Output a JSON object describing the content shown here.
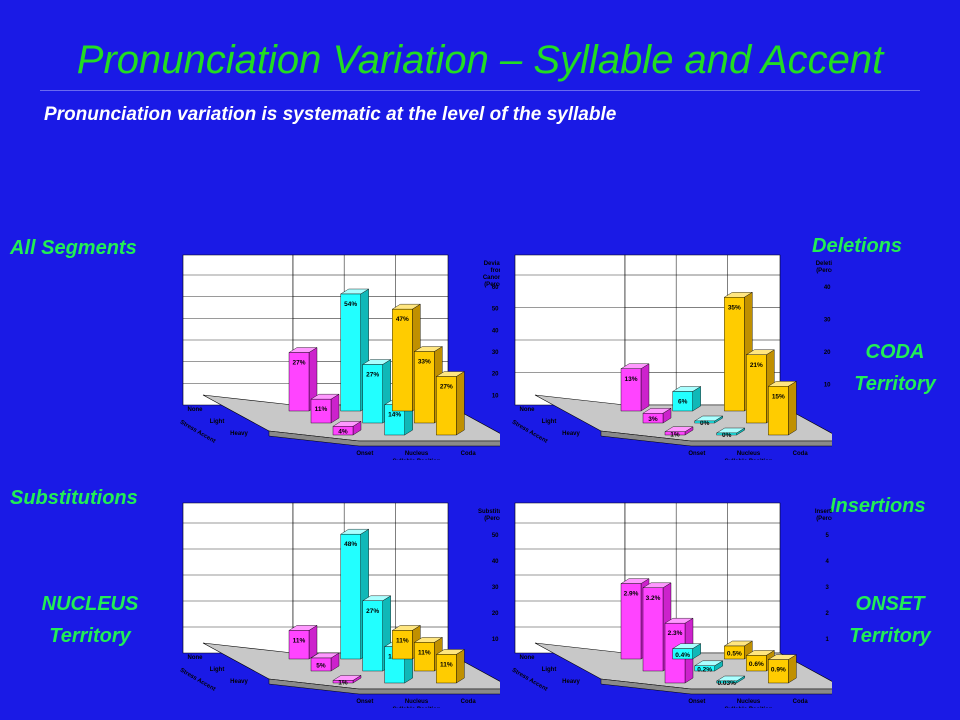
{
  "slide": {
    "title": "Pronunciation Variation – Syllable and Accent",
    "subtitle": "Pronunciation variation is systematic at the level of the syllable"
  },
  "labels": {
    "all_segments": "All Segments",
    "deletions": "Deletions",
    "coda_territory": [
      "CODA",
      "Territory"
    ],
    "substitutions": "Substitutions",
    "insertions": "Insertions",
    "nucleus_territory": [
      "NUCLEUS",
      "Territory"
    ],
    "onset_territory": [
      "ONSET",
      "Territory"
    ]
  },
  "colors": {
    "background": "#1a1ae6",
    "accent_text": "#22ee55",
    "onset": "#ff44ff",
    "nucleus": "#22ffff",
    "coda": "#ffcc00"
  },
  "chart_data": [
    {
      "type": "bar",
      "id": "all_segments",
      "title": "",
      "xlabel": "Syllable Position",
      "ylabel": "Deviation from Canonical (Percent)",
      "zlabel": "Stress Accent",
      "categories": [
        "Onset",
        "Nucleus",
        "Coda"
      ],
      "depth_categories": [
        "None",
        "Light",
        "Heavy"
      ],
      "yticks": [
        10,
        20,
        30,
        40,
        50,
        60
      ],
      "ylim": [
        0,
        60
      ],
      "series": [
        {
          "name": "Onset",
          "values": [
            27,
            11,
            4
          ],
          "labels": [
            "27%",
            "11%",
            "4%"
          ]
        },
        {
          "name": "Nucleus",
          "values": [
            54,
            27,
            14
          ],
          "labels": [
            "54%",
            "27%",
            "14%"
          ]
        },
        {
          "name": "Coda",
          "values": [
            47,
            33,
            27
          ],
          "labels": [
            "47%",
            "33%",
            "27%"
          ]
        }
      ]
    },
    {
      "type": "bar",
      "id": "deletions",
      "title": "",
      "xlabel": "Syllable Position",
      "ylabel": "Deletions (Percent)",
      "zlabel": "Stress Accent",
      "categories": [
        "Onset",
        "Nucleus",
        "Coda"
      ],
      "depth_categories": [
        "None",
        "Light",
        "Heavy"
      ],
      "yticks": [
        10,
        20,
        30,
        40
      ],
      "ylim": [
        0,
        40
      ],
      "series": [
        {
          "name": "Onset",
          "values": [
            13,
            3,
            1
          ],
          "labels": [
            "13%",
            "3%",
            "1%"
          ]
        },
        {
          "name": "Nucleus",
          "values": [
            6,
            0,
            0
          ],
          "labels": [
            "6%",
            "0%",
            "0%"
          ]
        },
        {
          "name": "Coda",
          "values": [
            35,
            21,
            15
          ],
          "labels": [
            "35%",
            "21%",
            "15%"
          ]
        }
      ]
    },
    {
      "type": "bar",
      "id": "substitutions",
      "title": "",
      "xlabel": "Syllable Position",
      "ylabel": "Substitutions (Percent)",
      "zlabel": "Stress Accent",
      "categories": [
        "Onset",
        "Nucleus",
        "Coda"
      ],
      "depth_categories": [
        "None",
        "Light",
        "Heavy"
      ],
      "yticks": [
        10,
        20,
        30,
        40,
        50
      ],
      "ylim": [
        0,
        50
      ],
      "series": [
        {
          "name": "Onset",
          "values": [
            11,
            5,
            1
          ],
          "labels": [
            "11%",
            "5%",
            "1%"
          ]
        },
        {
          "name": "Nucleus",
          "values": [
            48,
            27,
            14
          ],
          "labels": [
            "48%",
            "27%",
            "14%"
          ]
        },
        {
          "name": "Coda",
          "values": [
            11,
            11,
            11
          ],
          "labels": [
            "11%",
            "11%",
            "11%"
          ]
        }
      ]
    },
    {
      "type": "bar",
      "id": "insertions",
      "title": "",
      "xlabel": "Syllable Position",
      "ylabel": "Insertions (Percent)",
      "zlabel": "Stress Accent",
      "categories": [
        "Onset",
        "Nucleus",
        "Coda"
      ],
      "depth_categories": [
        "None",
        "Light",
        "Heavy"
      ],
      "yticks": [
        1,
        2,
        3,
        4,
        5
      ],
      "ylim": [
        0,
        5
      ],
      "series": [
        {
          "name": "Onset",
          "values": [
            2.9,
            3.2,
            2.3
          ],
          "labels": [
            "2.9%",
            "3.2%",
            "2.3%"
          ]
        },
        {
          "name": "Nucleus",
          "values": [
            0.4,
            0.2,
            0.03
          ],
          "labels": [
            "0.4%",
            "0.2%",
            "0.03%"
          ]
        },
        {
          "name": "Coda",
          "values": [
            0.5,
            0.6,
            0.9
          ],
          "labels": [
            "0.5%",
            "0.6%",
            "0.9%"
          ]
        }
      ]
    }
  ]
}
